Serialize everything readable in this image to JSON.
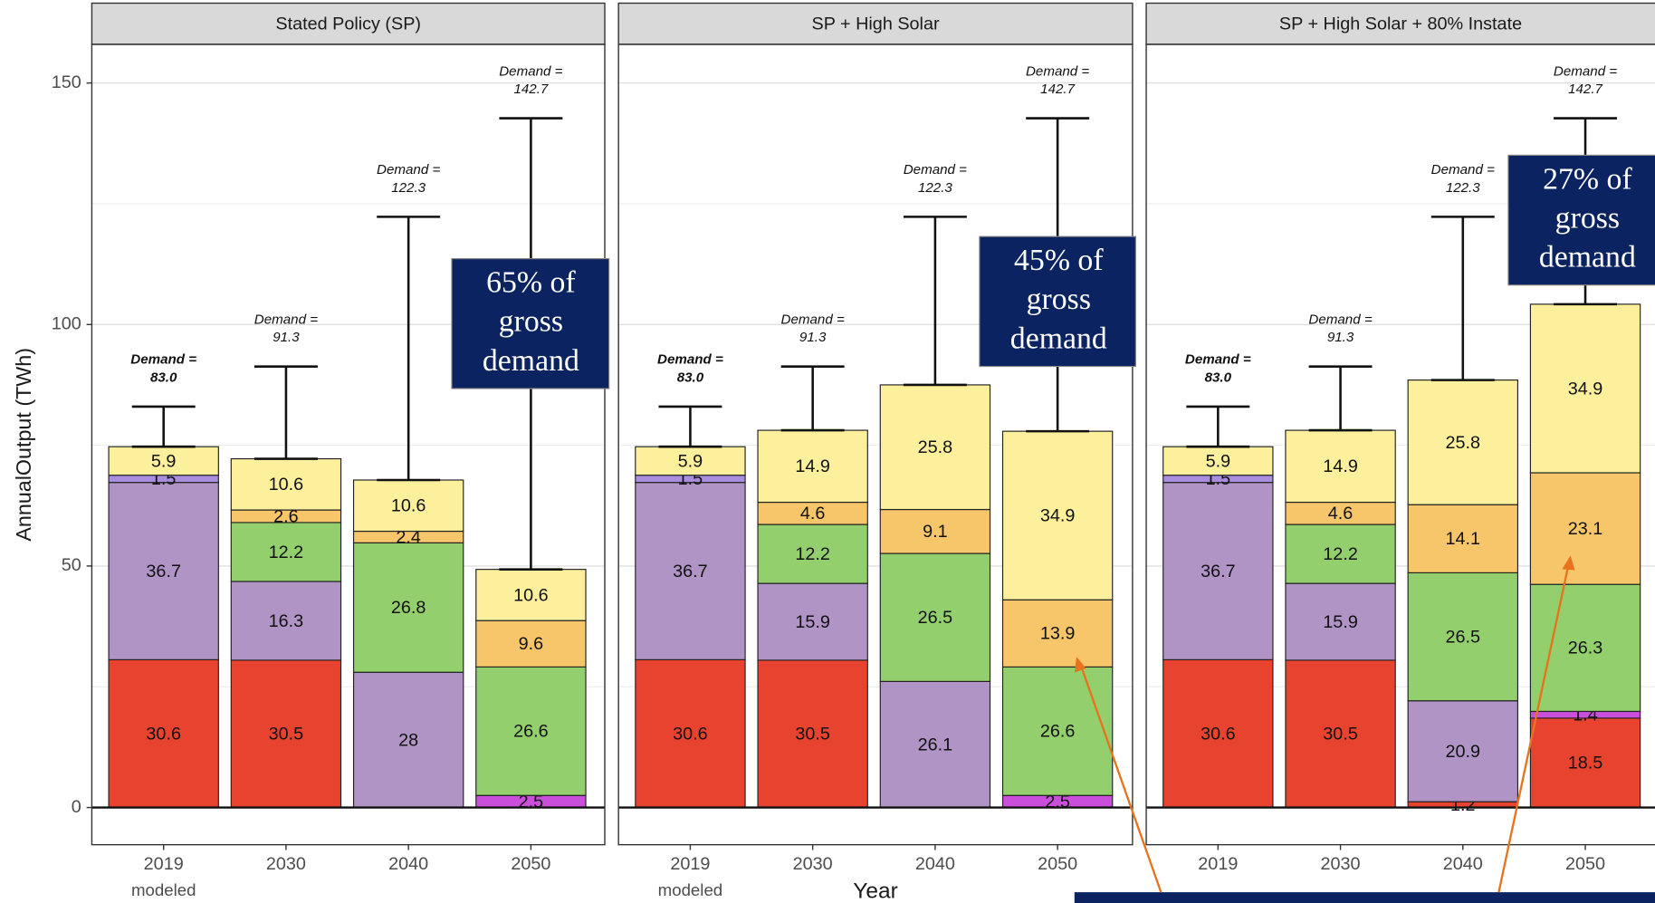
{
  "chart_data": [
    {
      "type": "stacked-bar",
      "title": "Stated Policy (SP)",
      "y_label": "AnnualOutput (TWh)",
      "categories": [
        "2019",
        "2030",
        "2040",
        "2050"
      ],
      "first_category_note": "modeled",
      "ylim": [
        -7.7,
        158
      ],
      "yticks": [
        0,
        50,
        100,
        150
      ],
      "yminor": [
        25,
        75,
        125
      ],
      "grid": true,
      "series": [
        {
          "color": "#e8432e",
          "values": [
            30.6,
            30.5,
            null,
            null
          ]
        },
        {
          "color": "#c94fdb",
          "values": [
            null,
            null,
            null,
            2.5
          ]
        },
        {
          "color": "#b194c6",
          "values": [
            36.7,
            16.3,
            28,
            null
          ]
        },
        {
          "color": "#a98ee0",
          "values": [
            1.5,
            null,
            null,
            null
          ]
        },
        {
          "color": "#93cf6c",
          "values": [
            null,
            12.2,
            26.8,
            26.6
          ]
        },
        {
          "color": "#f8c66a",
          "values": [
            null,
            2.6,
            2.4,
            9.6
          ]
        },
        {
          "color": "#fdf09c",
          "values": [
            5.9,
            10.6,
            10.6,
            10.6
          ]
        }
      ],
      "demand": {
        "label": "Demand =",
        "values": [
          83,
          91.3,
          122.3,
          142.7
        ],
        "value_labels": [
          "83.0",
          "91.3",
          "122.3",
          "142.7"
        ]
      },
      "callout": [
        "65% of",
        "gross",
        "demand"
      ]
    },
    {
      "type": "stacked-bar",
      "title": "SP + High Solar",
      "x_label": "Year",
      "categories": [
        "2019",
        "2030",
        "2040",
        "2050"
      ],
      "first_category_note": "modeled",
      "ylim": [
        -7.7,
        158
      ],
      "grid": true,
      "series": [
        {
          "color": "#e8432e",
          "values": [
            30.6,
            30.5,
            null,
            null
          ]
        },
        {
          "color": "#c94fdb",
          "values": [
            null,
            null,
            null,
            2.5
          ]
        },
        {
          "color": "#b194c6",
          "values": [
            36.7,
            15.9,
            26.1,
            null
          ]
        },
        {
          "color": "#a98ee0",
          "values": [
            1.5,
            null,
            null,
            null
          ]
        },
        {
          "color": "#93cf6c",
          "values": [
            null,
            12.2,
            26.5,
            26.6
          ]
        },
        {
          "color": "#f8c66a",
          "values": [
            null,
            4.6,
            9.1,
            13.9
          ]
        },
        {
          "color": "#fdf09c",
          "values": [
            5.9,
            14.9,
            25.8,
            34.9
          ]
        }
      ],
      "demand": {
        "label": "Demand =",
        "values": [
          83,
          91.3,
          122.3,
          142.7
        ],
        "value_labels": [
          "83.0",
          "91.3",
          "122.3",
          "142.7"
        ]
      },
      "callout": [
        "45% of",
        "gross",
        "demand"
      ]
    },
    {
      "type": "stacked-bar",
      "title": "SP + High Solar + 80% Instate",
      "categories": [
        "2019",
        "2030",
        "2040",
        "2050"
      ],
      "ylim": [
        -7.7,
        158
      ],
      "grid": true,
      "series": [
        {
          "color": "#e8432e",
          "values": [
            30.6,
            30.5,
            1.2,
            18.5
          ]
        },
        {
          "color": "#c94fdb",
          "values": [
            null,
            null,
            null,
            1.4
          ]
        },
        {
          "color": "#b194c6",
          "values": [
            36.7,
            15.9,
            20.9,
            null
          ]
        },
        {
          "color": "#a98ee0",
          "values": [
            1.5,
            null,
            null,
            null
          ]
        },
        {
          "color": "#93cf6c",
          "values": [
            null,
            12.2,
            26.5,
            26.3
          ]
        },
        {
          "color": "#f8c66a",
          "values": [
            null,
            4.6,
            14.1,
            23.1
          ]
        },
        {
          "color": "#fdf09c",
          "values": [
            5.9,
            14.9,
            25.8,
            34.9
          ]
        }
      ],
      "demand": {
        "label": "Demand =",
        "values": [
          83,
          91.3,
          122.3,
          142.7
        ],
        "value_labels": [
          "83.0",
          "91.3",
          "122.3",
          "142.7"
        ]
      },
      "callout": [
        "27% of",
        "gross",
        "demand"
      ]
    }
  ]
}
